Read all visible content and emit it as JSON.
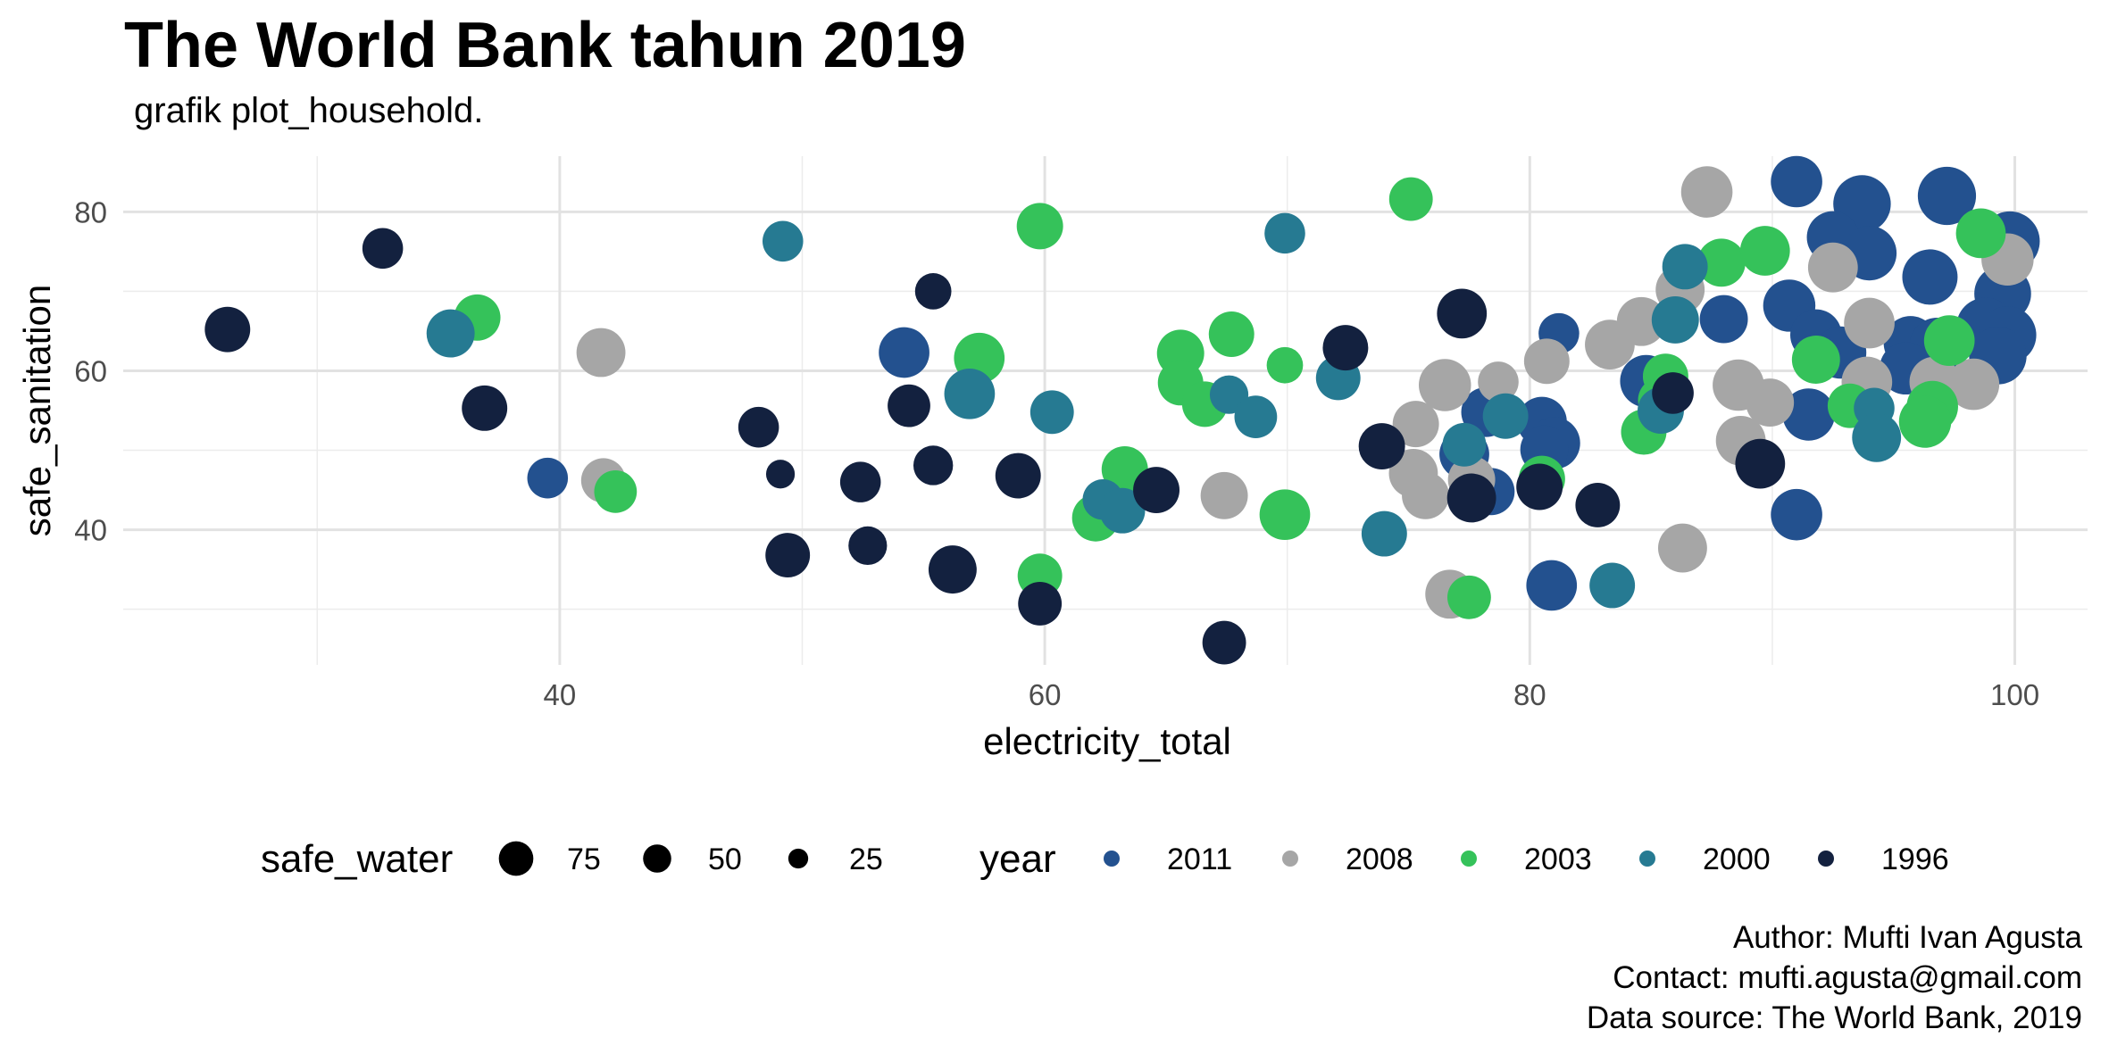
{
  "chart_data": {
    "type": "scatter",
    "title": "The World Bank tahun 2019",
    "subtitle": "grafik plot_household.",
    "xlabel": "electricity_total",
    "ylabel": "safe_sanitation",
    "xlim": [
      22,
      103
    ],
    "ylim": [
      23,
      87
    ],
    "x_ticks": [
      40,
      60,
      80,
      100
    ],
    "y_ticks": [
      40,
      60,
      80
    ],
    "grid": true,
    "size_legend": {
      "title": "safe_water",
      "entries": [
        {
          "label": "75",
          "value": 75
        },
        {
          "label": "50",
          "value": 50
        },
        {
          "label": "25",
          "value": 25
        }
      ]
    },
    "legend": {
      "title": "year",
      "placement": "bottom",
      "entries": [
        {
          "label": "2011",
          "color": "#23518f"
        },
        {
          "label": "2008",
          "color": "#a6a6a6"
        },
        {
          "label": "2003",
          "color": "#35c25a"
        },
        {
          "label": "2000",
          "color": "#267a92"
        },
        {
          "label": "1996",
          "color": "#13213f"
        }
      ]
    },
    "series": [
      {
        "legend_index": 0,
        "points": [
          {
            "x": 54.2,
            "y": 62.3,
            "size": 62
          },
          {
            "x": 39.5,
            "y": 46.5,
            "size": 40
          },
          {
            "x": 91.0,
            "y": 83.8,
            "size": 64
          },
          {
            "x": 93.7,
            "y": 81.0,
            "size": 80
          },
          {
            "x": 97.2,
            "y": 82.0,
            "size": 82
          },
          {
            "x": 92.5,
            "y": 76.8,
            "size": 66
          },
          {
            "x": 94.0,
            "y": 74.8,
            "size": 72
          },
          {
            "x": 96.5,
            "y": 71.8,
            "size": 74
          },
          {
            "x": 99.8,
            "y": 76.3,
            "size": 86
          },
          {
            "x": 99.5,
            "y": 69.7,
            "size": 78
          },
          {
            "x": 90.7,
            "y": 68.2,
            "size": 66
          },
          {
            "x": 88.0,
            "y": 66.5,
            "size": 56
          },
          {
            "x": 81.2,
            "y": 64.7,
            "size": 40
          },
          {
            "x": 91.8,
            "y": 64.5,
            "size": 64
          },
          {
            "x": 92.8,
            "y": 62.3,
            "size": 66
          },
          {
            "x": 95.7,
            "y": 63.5,
            "size": 70
          },
          {
            "x": 96.8,
            "y": 63.2,
            "size": 74
          },
          {
            "x": 95.5,
            "y": 60.3,
            "size": 66
          },
          {
            "x": 98.8,
            "y": 65.5,
            "size": 84
          },
          {
            "x": 99.7,
            "y": 64.5,
            "size": 80
          },
          {
            "x": 99.3,
            "y": 61.9,
            "size": 80
          },
          {
            "x": 84.8,
            "y": 58.7,
            "size": 66
          },
          {
            "x": 91.5,
            "y": 54.5,
            "size": 66
          },
          {
            "x": 78.2,
            "y": 54.8,
            "size": 60
          },
          {
            "x": 80.5,
            "y": 53.6,
            "size": 60
          },
          {
            "x": 81.0,
            "y": 50.9,
            "size": 66
          },
          {
            "x": 80.6,
            "y": 50.1,
            "size": 56
          },
          {
            "x": 77.3,
            "y": 49.5,
            "size": 60
          },
          {
            "x": 78.4,
            "y": 44.8,
            "size": 54
          },
          {
            "x": 91.0,
            "y": 41.9,
            "size": 64
          },
          {
            "x": 80.9,
            "y": 33.0,
            "size": 62
          }
        ]
      },
      {
        "legend_index": 1,
        "points": [
          {
            "x": 41.7,
            "y": 62.3,
            "size": 58
          },
          {
            "x": 41.8,
            "y": 46.2,
            "size": 48
          },
          {
            "x": 87.3,
            "y": 82.5,
            "size": 64
          },
          {
            "x": 92.5,
            "y": 73.0,
            "size": 60
          },
          {
            "x": 94.0,
            "y": 66.0,
            "size": 62
          },
          {
            "x": 86.2,
            "y": 70.2,
            "size": 58
          },
          {
            "x": 84.6,
            "y": 66.2,
            "size": 58
          },
          {
            "x": 83.3,
            "y": 63.3,
            "size": 60
          },
          {
            "x": 80.7,
            "y": 61.2,
            "size": 50
          },
          {
            "x": 78.7,
            "y": 58.6,
            "size": 40
          },
          {
            "x": 76.5,
            "y": 58.2,
            "size": 66
          },
          {
            "x": 75.3,
            "y": 53.3,
            "size": 52
          },
          {
            "x": 75.2,
            "y": 47.1,
            "size": 58
          },
          {
            "x": 75.7,
            "y": 44.3,
            "size": 54
          },
          {
            "x": 77.6,
            "y": 46.3,
            "size": 54
          },
          {
            "x": 67.4,
            "y": 44.3,
            "size": 54
          },
          {
            "x": 86.3,
            "y": 37.7,
            "size": 58
          },
          {
            "x": 76.7,
            "y": 31.9,
            "size": 58
          },
          {
            "x": 88.6,
            "y": 58.2,
            "size": 64
          },
          {
            "x": 89.9,
            "y": 56.0,
            "size": 56
          },
          {
            "x": 88.7,
            "y": 51.2,
            "size": 60
          },
          {
            "x": 93.9,
            "y": 58.6,
            "size": 62
          },
          {
            "x": 96.7,
            "y": 58.6,
            "size": 62
          },
          {
            "x": 98.3,
            "y": 58.3,
            "size": 64
          },
          {
            "x": 99.7,
            "y": 74.0,
            "size": 66
          }
        ]
      },
      {
        "legend_index": 2,
        "points": [
          {
            "x": 36.6,
            "y": 66.7,
            "size": 52
          },
          {
            "x": 42.3,
            "y": 44.8,
            "size": 44
          },
          {
            "x": 59.8,
            "y": 78.2,
            "size": 52
          },
          {
            "x": 75.1,
            "y": 81.6,
            "size": 46
          },
          {
            "x": 57.3,
            "y": 61.6,
            "size": 62
          },
          {
            "x": 67.7,
            "y": 64.6,
            "size": 50
          },
          {
            "x": 65.6,
            "y": 62.2,
            "size": 54
          },
          {
            "x": 69.9,
            "y": 60.7,
            "size": 32
          },
          {
            "x": 65.6,
            "y": 58.5,
            "size": 50
          },
          {
            "x": 66.6,
            "y": 55.8,
            "size": 50
          },
          {
            "x": 63.3,
            "y": 47.6,
            "size": 52
          },
          {
            "x": 62.1,
            "y": 41.5,
            "size": 54
          },
          {
            "x": 69.9,
            "y": 41.9,
            "size": 62
          },
          {
            "x": 59.8,
            "y": 34.2,
            "size": 48
          },
          {
            "x": 77.5,
            "y": 31.5,
            "size": 46
          },
          {
            "x": 80.5,
            "y": 46.4,
            "size": 52
          },
          {
            "x": 84.7,
            "y": 52.3,
            "size": 50
          },
          {
            "x": 85.6,
            "y": 59.3,
            "size": 50
          },
          {
            "x": 85.4,
            "y": 56.3,
            "size": 50
          },
          {
            "x": 87.9,
            "y": 73.6,
            "size": 56
          },
          {
            "x": 89.7,
            "y": 75.1,
            "size": 60
          },
          {
            "x": 91.8,
            "y": 61.4,
            "size": 56
          },
          {
            "x": 93.2,
            "y": 55.6,
            "size": 48
          },
          {
            "x": 96.6,
            "y": 55.5,
            "size": 64
          },
          {
            "x": 96.3,
            "y": 53.6,
            "size": 66
          },
          {
            "x": 97.3,
            "y": 63.8,
            "size": 62
          },
          {
            "x": 98.6,
            "y": 77.3,
            "size": 60
          }
        ]
      },
      {
        "legend_index": 3,
        "points": [
          {
            "x": 35.5,
            "y": 64.7,
            "size": 56
          },
          {
            "x": 49.2,
            "y": 76.3,
            "size": 40
          },
          {
            "x": 69.9,
            "y": 77.3,
            "size": 40
          },
          {
            "x": 56.9,
            "y": 57.1,
            "size": 62
          },
          {
            "x": 60.3,
            "y": 54.8,
            "size": 46
          },
          {
            "x": 67.6,
            "y": 57.0,
            "size": 36
          },
          {
            "x": 68.7,
            "y": 54.2,
            "size": 44
          },
          {
            "x": 72.1,
            "y": 59.1,
            "size": 48
          },
          {
            "x": 62.4,
            "y": 43.8,
            "size": 40
          },
          {
            "x": 63.2,
            "y": 42.4,
            "size": 50
          },
          {
            "x": 74.0,
            "y": 39.5,
            "size": 50
          },
          {
            "x": 77.3,
            "y": 50.7,
            "size": 46
          },
          {
            "x": 79.0,
            "y": 54.3,
            "size": 50
          },
          {
            "x": 83.4,
            "y": 33.0,
            "size": 50
          },
          {
            "x": 85.4,
            "y": 55.0,
            "size": 52
          },
          {
            "x": 86.0,
            "y": 66.4,
            "size": 54
          },
          {
            "x": 86.4,
            "y": 73.1,
            "size": 50
          },
          {
            "x": 94.2,
            "y": 55.3,
            "size": 40
          },
          {
            "x": 94.3,
            "y": 51.6,
            "size": 58
          }
        ]
      },
      {
        "legend_index": 4,
        "points": [
          {
            "x": 26.3,
            "y": 65.2,
            "size": 50
          },
          {
            "x": 32.7,
            "y": 75.4,
            "size": 40
          },
          {
            "x": 36.9,
            "y": 55.3,
            "size": 50
          },
          {
            "x": 48.2,
            "y": 52.9,
            "size": 40
          },
          {
            "x": 49.1,
            "y": 47.0,
            "size": 20
          },
          {
            "x": 49.4,
            "y": 36.8,
            "size": 48
          },
          {
            "x": 52.4,
            "y": 46.0,
            "size": 40
          },
          {
            "x": 52.7,
            "y": 38.0,
            "size": 36
          },
          {
            "x": 54.4,
            "y": 55.6,
            "size": 44
          },
          {
            "x": 55.4,
            "y": 48.1,
            "size": 38
          },
          {
            "x": 55.4,
            "y": 70.0,
            "size": 32
          },
          {
            "x": 56.2,
            "y": 35.0,
            "size": 56
          },
          {
            "x": 58.9,
            "y": 46.8,
            "size": 50
          },
          {
            "x": 59.8,
            "y": 30.7,
            "size": 46
          },
          {
            "x": 64.6,
            "y": 45.0,
            "size": 52
          },
          {
            "x": 67.4,
            "y": 25.8,
            "size": 46
          },
          {
            "x": 72.4,
            "y": 62.9,
            "size": 50
          },
          {
            "x": 73.9,
            "y": 50.5,
            "size": 52
          },
          {
            "x": 77.2,
            "y": 67.2,
            "size": 60
          },
          {
            "x": 77.6,
            "y": 44.0,
            "size": 58
          },
          {
            "x": 80.4,
            "y": 45.4,
            "size": 52
          },
          {
            "x": 82.8,
            "y": 43.1,
            "size": 48
          },
          {
            "x": 85.9,
            "y": 57.2,
            "size": 42
          },
          {
            "x": 89.5,
            "y": 48.3,
            "size": 60
          }
        ]
      }
    ]
  },
  "caption": {
    "author": "Author: Mufti Ivan Agusta",
    "contact": "Contact: mufti.agusta@gmail.com",
    "source": "Data source: The World Bank, 2019"
  }
}
